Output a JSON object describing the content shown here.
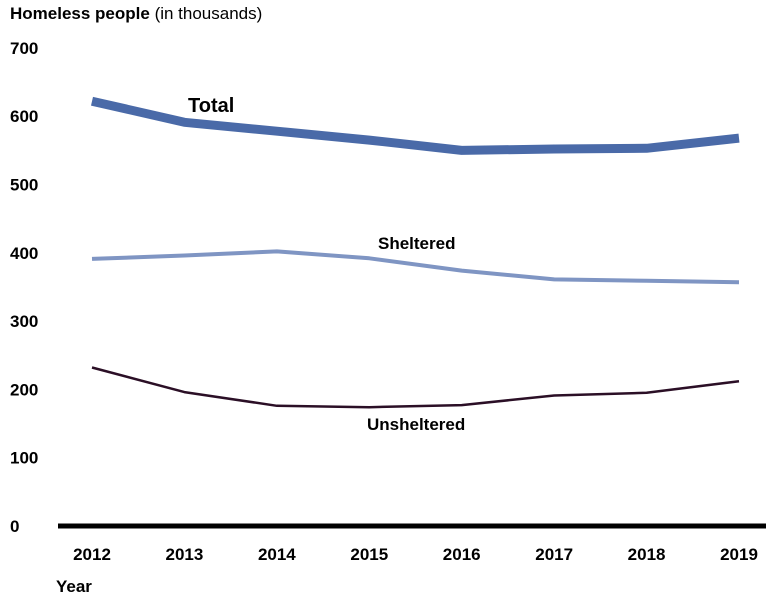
{
  "chart_data": {
    "type": "line",
    "title": "Homeless people",
    "subtitle": "(in thousands)",
    "xlabel": "Year",
    "ylabel": "",
    "ylim": [
      0,
      700
    ],
    "yticks": [
      "0",
      "100",
      "200",
      "300",
      "400",
      "500",
      "600",
      "700"
    ],
    "categories": [
      "2012",
      "2013",
      "2014",
      "2015",
      "2016",
      "2017",
      "2018",
      "2019"
    ],
    "grid": false,
    "series": [
      {
        "name": "Total",
        "color": "#4a6aa8",
        "values": [
          622,
          591,
          578,
          565,
          550,
          552,
          553,
          568
        ]
      },
      {
        "name": "Sheltered",
        "color": "#7f95c3",
        "values": [
          391,
          396,
          402,
          392,
          374,
          361,
          359,
          357
        ]
      },
      {
        "name": "Unsheltered",
        "color": "#2b0f26",
        "values": [
          232,
          196,
          176,
          174,
          177,
          191,
          195,
          212
        ]
      }
    ]
  }
}
